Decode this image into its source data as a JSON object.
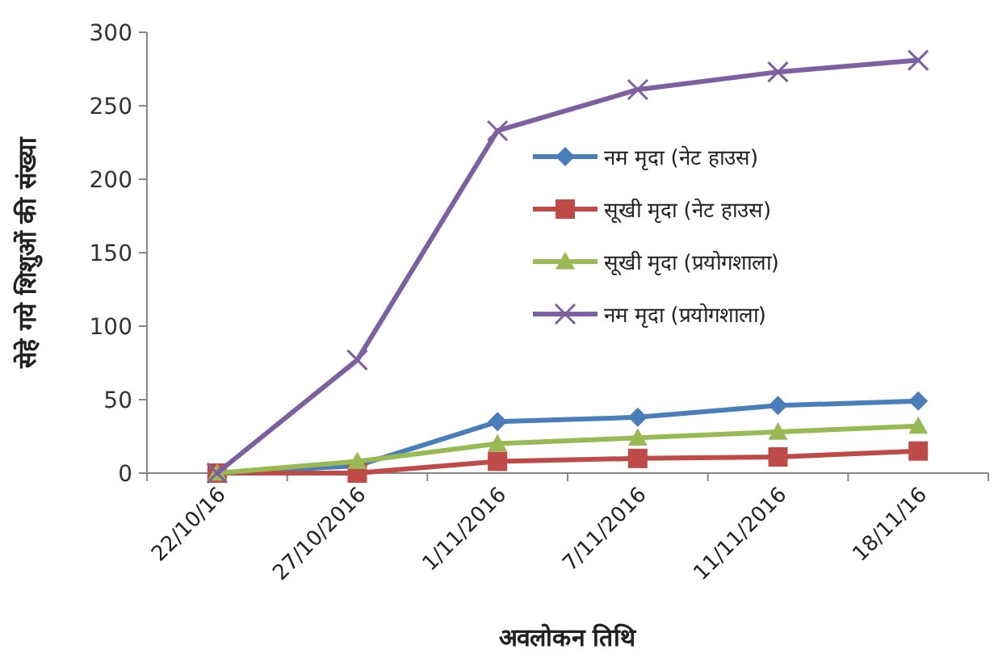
{
  "chart_data": {
    "type": "line",
    "xlabel": "अवलोकन तिथि",
    "ylabel": "सेहे गये शिशुओं की संख्या",
    "categories": [
      "22/10/16",
      "27/10/2016",
      "1/11/2016",
      "7/11/2016",
      "11/11/2016",
      "18/11/16"
    ],
    "series": [
      {
        "name": "नम मृदा (नेट हाउस)",
        "color": "#4a7ebb",
        "marker": "diamond",
        "values": [
          0,
          5,
          35,
          38,
          46,
          49
        ]
      },
      {
        "name": "सूखी मृदा (नेट हाउस)",
        "color": "#be4b48",
        "marker": "square",
        "values": [
          0,
          0,
          8,
          10,
          11,
          15
        ]
      },
      {
        "name": "सूखी मृदा (प्रयोगशाला)",
        "color": "#98b954",
        "marker": "triangle",
        "values": [
          0,
          8,
          20,
          24,
          28,
          32
        ]
      },
      {
        "name": "नम मृदा (प्रयोगशाला)",
        "color": "#7d60a0",
        "marker": "cross",
        "values": [
          0,
          77,
          233,
          261,
          273,
          281
        ]
      }
    ],
    "ylim": [
      0,
      300
    ],
    "yticks": [
      0,
      50,
      100,
      150,
      200,
      250,
      300
    ],
    "grid": false,
    "legend": "right",
    "line_style": "solid"
  }
}
